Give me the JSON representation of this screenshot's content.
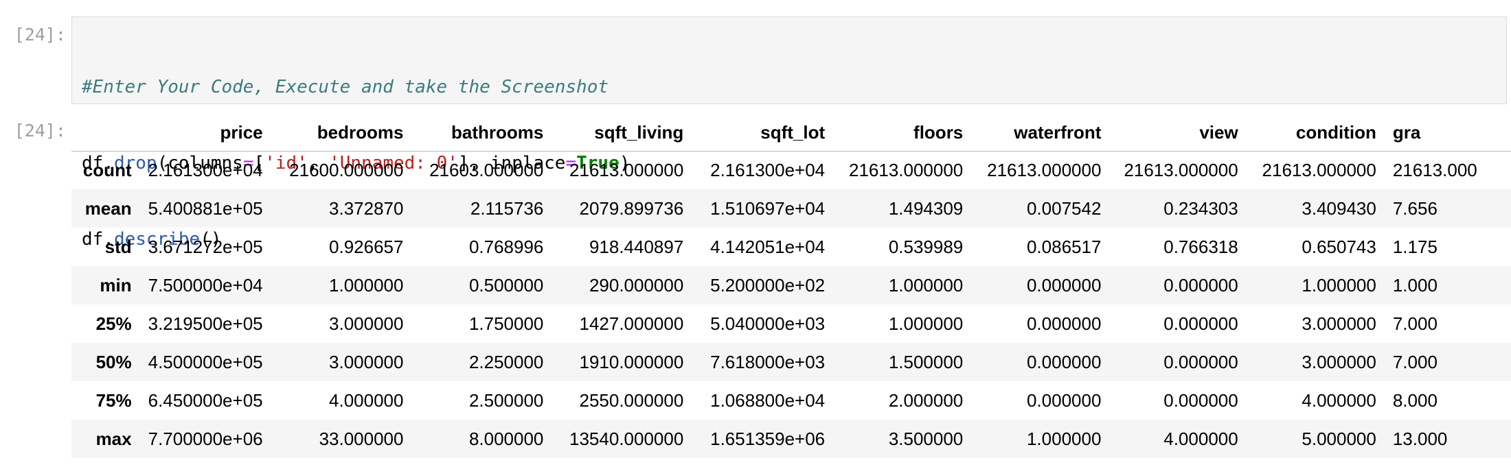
{
  "input_cell": {
    "prompt": "[24]:",
    "comment": "#Enter Your Code, Execute and take the Screenshot",
    "line2": {
      "obj": "df.",
      "method": "drop",
      "open": "(",
      "param": "columns",
      "eq": "=",
      "lbr": "[",
      "s1": "'id'",
      "comma": ", ",
      "s2": "'Unnamed: 0'",
      "rbr": "]",
      "comma2": ", ",
      "param2": "inplace",
      "eq2": "=",
      "kw": "True",
      "close": ")"
    },
    "line3": {
      "obj": "df.",
      "method": "describe",
      "parens": "()"
    }
  },
  "output_cell": {
    "prompt": "[24]:",
    "columns": [
      "price",
      "bedrooms",
      "bathrooms",
      "sqft_living",
      "sqft_lot",
      "floors",
      "waterfront",
      "view",
      "condition",
      "gra"
    ],
    "rows": [
      {
        "label": "count",
        "values": [
          "2.161300e+04",
          "21600.000000",
          "21603.000000",
          "21613.000000",
          "2.161300e+04",
          "21613.000000",
          "21613.000000",
          "21613.000000",
          "21613.000000",
          "21613.000"
        ]
      },
      {
        "label": "mean",
        "values": [
          "5.400881e+05",
          "3.372870",
          "2.115736",
          "2079.899736",
          "1.510697e+04",
          "1.494309",
          "0.007542",
          "0.234303",
          "3.409430",
          "7.656"
        ]
      },
      {
        "label": "std",
        "values": [
          "3.671272e+05",
          "0.926657",
          "0.768996",
          "918.440897",
          "4.142051e+04",
          "0.539989",
          "0.086517",
          "0.766318",
          "0.650743",
          "1.175"
        ]
      },
      {
        "label": "min",
        "values": [
          "7.500000e+04",
          "1.000000",
          "0.500000",
          "290.000000",
          "5.200000e+02",
          "1.000000",
          "0.000000",
          "0.000000",
          "1.000000",
          "1.000"
        ]
      },
      {
        "label": "25%",
        "values": [
          "3.219500e+05",
          "3.000000",
          "1.750000",
          "1427.000000",
          "5.040000e+03",
          "1.000000",
          "0.000000",
          "0.000000",
          "3.000000",
          "7.000"
        ]
      },
      {
        "label": "50%",
        "values": [
          "4.500000e+05",
          "3.000000",
          "2.250000",
          "1910.000000",
          "7.618000e+03",
          "1.500000",
          "0.000000",
          "0.000000",
          "3.000000",
          "7.000"
        ]
      },
      {
        "label": "75%",
        "values": [
          "6.450000e+05",
          "4.000000",
          "2.500000",
          "2550.000000",
          "1.068800e+04",
          "2.000000",
          "0.000000",
          "0.000000",
          "4.000000",
          "8.000"
        ]
      },
      {
        "label": "max",
        "values": [
          "7.700000e+06",
          "33.000000",
          "8.000000",
          "13540.000000",
          "1.651359e+06",
          "3.500000",
          "1.000000",
          "4.000000",
          "5.000000",
          "13.000"
        ]
      }
    ]
  }
}
